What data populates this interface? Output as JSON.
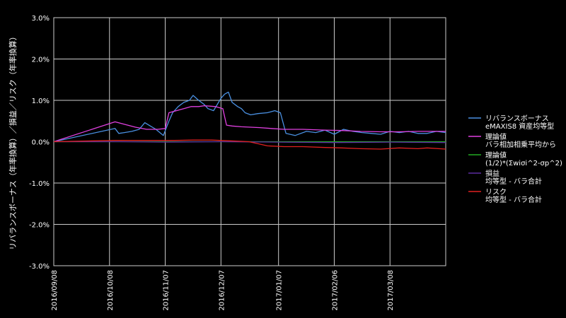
{
  "chart_data": {
    "type": "line",
    "title": "",
    "xlabel": "",
    "ylabel": "リバランスボーナス（年率換算）／損益／リスク（年率換算）",
    "ylim": [
      -3.0,
      3.0
    ],
    "yticks": [
      "3.0%",
      "2.0%",
      "1.0%",
      "0.0%",
      "-1.0%",
      "-2.0%",
      "-3.0%"
    ],
    "xlim": [
      "2016-09-08",
      "2017-04-07"
    ],
    "xticks": [
      "2016/09/08",
      "2016/10/08",
      "2016/11/07",
      "2016/12/07",
      "2017/01/07",
      "2017/02/06",
      "2017/03/08"
    ],
    "grid": true,
    "legend_position": "right",
    "series": [
      {
        "name": "リバランスボーナス\neMAXIS8 資産均等型",
        "color": "#4a90e2",
        "x": [
          "2016-09-08",
          "2016-10-11",
          "2016-10-13",
          "2016-10-16",
          "2016-10-20",
          "2016-10-24",
          "2016-10-27",
          "2016-10-30",
          "2016-11-02",
          "2016-11-06",
          "2016-11-09",
          "2016-11-11",
          "2016-11-14",
          "2016-11-17",
          "2016-11-20",
          "2016-11-22",
          "2016-11-25",
          "2016-11-28",
          "2016-11-30",
          "2016-12-03",
          "2016-12-05",
          "2016-12-07",
          "2016-12-09",
          "2016-12-11",
          "2016-12-13",
          "2016-12-16",
          "2016-12-18",
          "2016-12-20",
          "2016-12-23",
          "2016-12-27",
          "2017-01-01",
          "2017-01-05",
          "2017-01-08",
          "2017-01-11",
          "2017-01-16",
          "2017-01-22",
          "2017-01-27",
          "2017-02-01",
          "2017-02-06",
          "2017-02-11",
          "2017-02-16",
          "2017-02-21",
          "2017-02-26",
          "2017-03-03",
          "2017-03-08",
          "2017-03-13",
          "2017-03-18",
          "2017-03-23",
          "2017-03-28",
          "2017-04-02",
          "2017-04-07"
        ],
        "values": [
          0.0,
          0.32,
          0.2,
          0.22,
          0.25,
          0.3,
          0.46,
          0.38,
          0.3,
          0.15,
          0.5,
          0.7,
          0.85,
          0.95,
          1.0,
          1.12,
          1.0,
          0.9,
          0.8,
          0.75,
          0.9,
          1.05,
          1.15,
          1.2,
          0.95,
          0.85,
          0.8,
          0.7,
          0.65,
          0.68,
          0.7,
          0.75,
          0.7,
          0.2,
          0.15,
          0.25,
          0.22,
          0.28,
          0.18,
          0.3,
          0.25,
          0.22,
          0.2,
          0.18,
          0.25,
          0.22,
          0.25,
          0.2,
          0.2,
          0.25,
          0.22
        ]
      },
      {
        "name": "理論値\nバラ相加相乗平均から",
        "color": "#e040e0",
        "x": [
          "2016-09-08",
          "2016-10-11",
          "2016-10-16",
          "2016-10-22",
          "2016-10-28",
          "2016-11-03",
          "2016-11-07",
          "2016-11-09",
          "2016-11-13",
          "2016-11-17",
          "2016-11-21",
          "2016-11-25",
          "2016-11-28",
          "2016-12-01",
          "2016-12-04",
          "2016-12-08",
          "2016-12-10",
          "2016-12-13",
          "2016-12-18",
          "2016-12-23",
          "2016-12-28",
          "2017-01-03",
          "2017-01-10",
          "2017-01-20",
          "2017-02-01",
          "2017-02-10",
          "2017-02-20",
          "2017-03-03",
          "2017-03-13",
          "2017-03-23",
          "2017-04-07"
        ],
        "values": [
          0.0,
          0.48,
          0.42,
          0.35,
          0.3,
          0.3,
          0.32,
          0.7,
          0.75,
          0.8,
          0.85,
          0.85,
          0.87,
          0.86,
          0.85,
          0.8,
          0.4,
          0.38,
          0.36,
          0.35,
          0.34,
          0.32,
          0.3,
          0.3,
          0.28,
          0.27,
          0.25,
          0.24,
          0.24,
          0.25,
          0.25
        ]
      },
      {
        "name": "理論値\n(1/2)*(Σwiσi^2-σp^2)",
        "color": "#22aa22",
        "x": [
          "2016-09-08",
          "2017-04-07"
        ],
        "values": [
          0.0,
          0.0
        ]
      },
      {
        "name": "損益\n均等型 - バラ合計",
        "color": "#5a2ca0",
        "x": [
          "2016-09-08",
          "2016-10-13",
          "2016-11-07",
          "2016-12-07",
          "2017-01-07",
          "2017-02-06",
          "2017-03-08",
          "2017-04-07"
        ],
        "values": [
          0.0,
          0.0,
          -0.01,
          0.0,
          -0.01,
          -0.02,
          -0.01,
          -0.02
        ]
      },
      {
        "name": "リスク\n均等型 - バラ合計",
        "color": "#e02020",
        "x": [
          "2016-09-08",
          "2016-10-11",
          "2016-10-20",
          "2016-11-03",
          "2016-11-12",
          "2016-11-22",
          "2016-12-02",
          "2016-12-12",
          "2016-12-22",
          "2016-12-27",
          "2017-01-01",
          "2017-01-10",
          "2017-01-20",
          "2017-02-01",
          "2017-02-10",
          "2017-02-20",
          "2017-03-03",
          "2017-03-13",
          "2017-03-23",
          "2017-03-28",
          "2017-04-07"
        ],
        "values": [
          0.0,
          0.03,
          0.03,
          0.03,
          0.03,
          0.04,
          0.04,
          0.02,
          0.0,
          -0.05,
          -0.1,
          -0.12,
          -0.12,
          -0.14,
          -0.15,
          -0.17,
          -0.18,
          -0.15,
          -0.17,
          -0.15,
          -0.18
        ]
      }
    ]
  }
}
